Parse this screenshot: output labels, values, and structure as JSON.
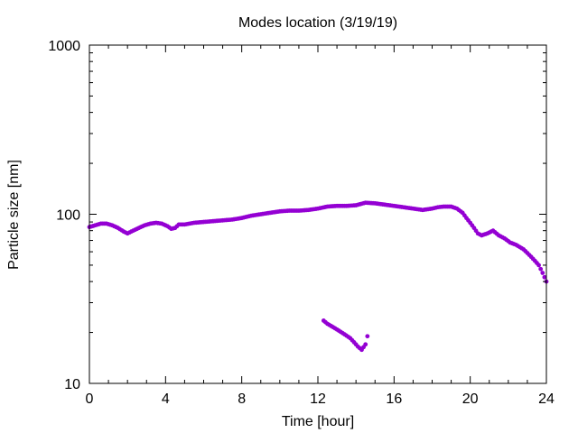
{
  "chart_data": {
    "type": "scatter",
    "title": "Modes location (3/19/19)",
    "xlabel": "Time [hour]",
    "ylabel": "Particle size [nm]",
    "xlim": [
      0,
      24
    ],
    "ylim": [
      10,
      1000
    ],
    "yscale": "log",
    "grid": false,
    "legend": "none",
    "xticks": [
      0,
      4,
      8,
      12,
      16,
      20,
      24
    ],
    "xtick_labels": [
      "0",
      "4",
      "8",
      "12",
      "16",
      "20",
      "24"
    ],
    "yticks": [
      10,
      100,
      1000
    ],
    "ytick_labels": [
      "10",
      "100",
      "1000"
    ],
    "marker_color": "#9400d3",
    "series": [
      {
        "x": [
          0.0,
          0.3,
          0.6,
          0.9,
          1.2,
          1.5,
          1.8,
          2.0,
          2.3,
          2.6,
          2.9,
          3.2,
          3.5,
          3.8,
          4.1,
          4.3,
          4.5,
          4.7,
          5.0,
          5.5,
          6.0,
          6.5,
          7.0,
          7.5,
          8.0,
          8.5,
          9.0,
          9.5,
          10.0,
          10.5,
          11.0,
          11.5,
          12.0,
          12.5,
          13.0,
          13.5,
          14.0,
          14.5,
          15.0,
          15.5,
          16.0,
          16.5,
          17.0,
          17.5,
          18.0,
          18.3,
          18.6,
          19.0,
          19.3,
          19.6,
          19.8,
          20.0,
          20.2,
          20.4,
          20.6,
          20.9,
          21.2,
          21.5,
          21.8,
          22.1,
          22.4,
          22.6,
          22.8,
          23.0,
          23.2,
          23.4,
          23.6,
          23.8,
          24.0
        ],
        "y": [
          84,
          86,
          88,
          88,
          86,
          83,
          79,
          77,
          80,
          83,
          86,
          88,
          89,
          88,
          85,
          82,
          83,
          87,
          87,
          89,
          90,
          91,
          92,
          93,
          95,
          98,
          100,
          102,
          104,
          105,
          105,
          106,
          108,
          111,
          112,
          112,
          113,
          117,
          116,
          114,
          112,
          110,
          108,
          106,
          108,
          110,
          111,
          111,
          108,
          102,
          95,
          89,
          83,
          77,
          75,
          77,
          80,
          75,
          72,
          68,
          66,
          64,
          62,
          59,
          56,
          53,
          50,
          45,
          40
        ]
      },
      {
        "x": [
          12.3,
          12.5,
          12.8,
          13.1,
          13.4,
          13.7,
          13.9,
          14.1,
          14.3,
          14.5,
          14.6
        ],
        "y": [
          23.5,
          22.5,
          21.5,
          20.5,
          19.5,
          18.5,
          17.5,
          16.5,
          15.8,
          17,
          19
        ]
      }
    ]
  }
}
